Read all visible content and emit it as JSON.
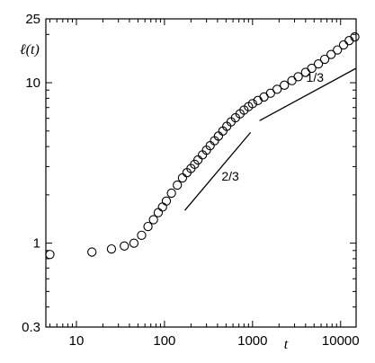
{
  "chart_data": {
    "type": "scatter",
    "x_scale": "log",
    "y_scale": "log",
    "xlim": [
      4.5,
      15000
    ],
    "ylim": [
      0.3,
      25
    ],
    "xlabel": "t",
    "ylabel": "ℓ(t)",
    "x_ticks": [
      {
        "value": 10,
        "label": "10"
      },
      {
        "value": 100,
        "label": "100"
      },
      {
        "value": 1000,
        "label": "1000"
      },
      {
        "value": 10000,
        "label": "10000"
      }
    ],
    "y_ticks": [
      {
        "value": 0.3,
        "label": "0.3"
      },
      {
        "value": 1,
        "label": "1"
      },
      {
        "value": 10,
        "label": "10"
      },
      {
        "value": 25,
        "label": "25"
      }
    ],
    "marker": "open-circle",
    "series": [
      {
        "points": [
          [
            5,
            0.85
          ],
          [
            15,
            0.88
          ],
          [
            25,
            0.92
          ],
          [
            35,
            0.96
          ],
          [
            45,
            1.0
          ],
          [
            55,
            1.12
          ],
          [
            65,
            1.27
          ],
          [
            75,
            1.4
          ],
          [
            85,
            1.55
          ],
          [
            95,
            1.68
          ],
          [
            105,
            1.83
          ],
          [
            120,
            2.05
          ],
          [
            140,
            2.3
          ],
          [
            160,
            2.55
          ],
          [
            180,
            2.75
          ],
          [
            200,
            2.92
          ],
          [
            220,
            3.1
          ],
          [
            240,
            3.3
          ],
          [
            270,
            3.55
          ],
          [
            300,
            3.8
          ],
          [
            330,
            4.05
          ],
          [
            370,
            4.35
          ],
          [
            410,
            4.65
          ],
          [
            460,
            5.0
          ],
          [
            510,
            5.35
          ],
          [
            570,
            5.7
          ],
          [
            640,
            6.05
          ],
          [
            720,
            6.4
          ],
          [
            800,
            6.75
          ],
          [
            900,
            7.1
          ],
          [
            1000,
            7.4
          ],
          [
            1150,
            7.75
          ],
          [
            1350,
            8.15
          ],
          [
            1600,
            8.6
          ],
          [
            1900,
            9.1
          ],
          [
            2300,
            9.65
          ],
          [
            2800,
            10.3
          ],
          [
            3300,
            10.9
          ],
          [
            4000,
            11.6
          ],
          [
            4700,
            12.3
          ],
          [
            5600,
            13.1
          ],
          [
            6600,
            14.0
          ],
          [
            7800,
            15.0
          ],
          [
            9200,
            16.0
          ],
          [
            10800,
            17.2
          ],
          [
            12500,
            18.3
          ],
          [
            14500,
            19.3
          ]
        ]
      }
    ],
    "guide_lines": [
      {
        "label": "2/3",
        "from": [
          170,
          1.6
        ],
        "to": [
          950,
          4.9
        ]
      },
      {
        "label": "1/3",
        "from": [
          1200,
          5.8
        ],
        "to": [
          15000,
          12.3
        ]
      }
    ]
  }
}
